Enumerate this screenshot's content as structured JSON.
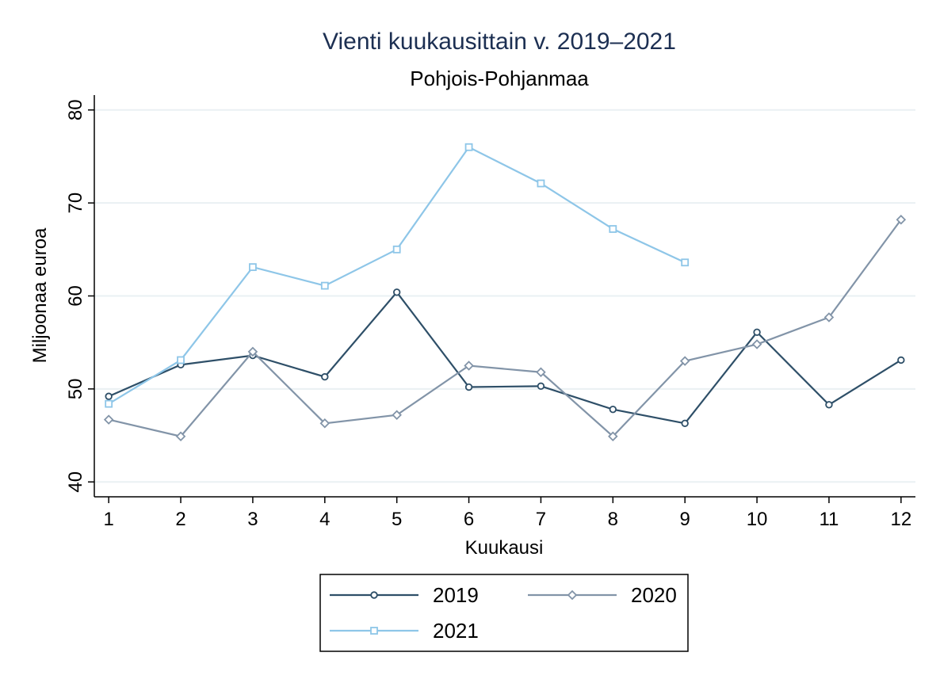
{
  "chart_data": {
    "type": "line",
    "title": "Vienti kuukausittain v. 2019–2021",
    "subtitle": "Pohjois-Pohjanmaa",
    "x_label": "Kuukausi",
    "y_label": "Miljoonaa euroa",
    "x": [
      1,
      2,
      3,
      4,
      5,
      6,
      7,
      8,
      9,
      10,
      11,
      12
    ],
    "xlim": [
      0.8,
      12.2
    ],
    "xticks": [
      1,
      2,
      3,
      4,
      5,
      6,
      7,
      8,
      9,
      10,
      11,
      12
    ],
    "ylim": [
      38.4,
      81.6
    ],
    "yticks": [
      40,
      50,
      60,
      70,
      80
    ],
    "grid": true,
    "legend": "bottom",
    "series": [
      {
        "name": "2019",
        "color": "#2e4f68",
        "marker": "circle",
        "values": [
          49.2,
          52.6,
          53.6,
          51.3,
          60.4,
          50.2,
          50.3,
          47.8,
          46.3,
          56.1,
          48.3,
          53.1
        ]
      },
      {
        "name": "2020",
        "color": "#8294a8",
        "marker": "diamond",
        "values": [
          46.7,
          44.9,
          54.0,
          46.3,
          47.2,
          52.5,
          51.8,
          44.9,
          53.0,
          54.8,
          57.7,
          68.2
        ]
      },
      {
        "name": "2021",
        "color": "#8ec6e8",
        "marker": "square",
        "values": [
          48.4,
          53.1,
          63.1,
          61.1,
          65.0,
          76.0,
          72.1,
          67.2,
          63.6,
          null,
          null,
          null
        ]
      }
    ]
  }
}
